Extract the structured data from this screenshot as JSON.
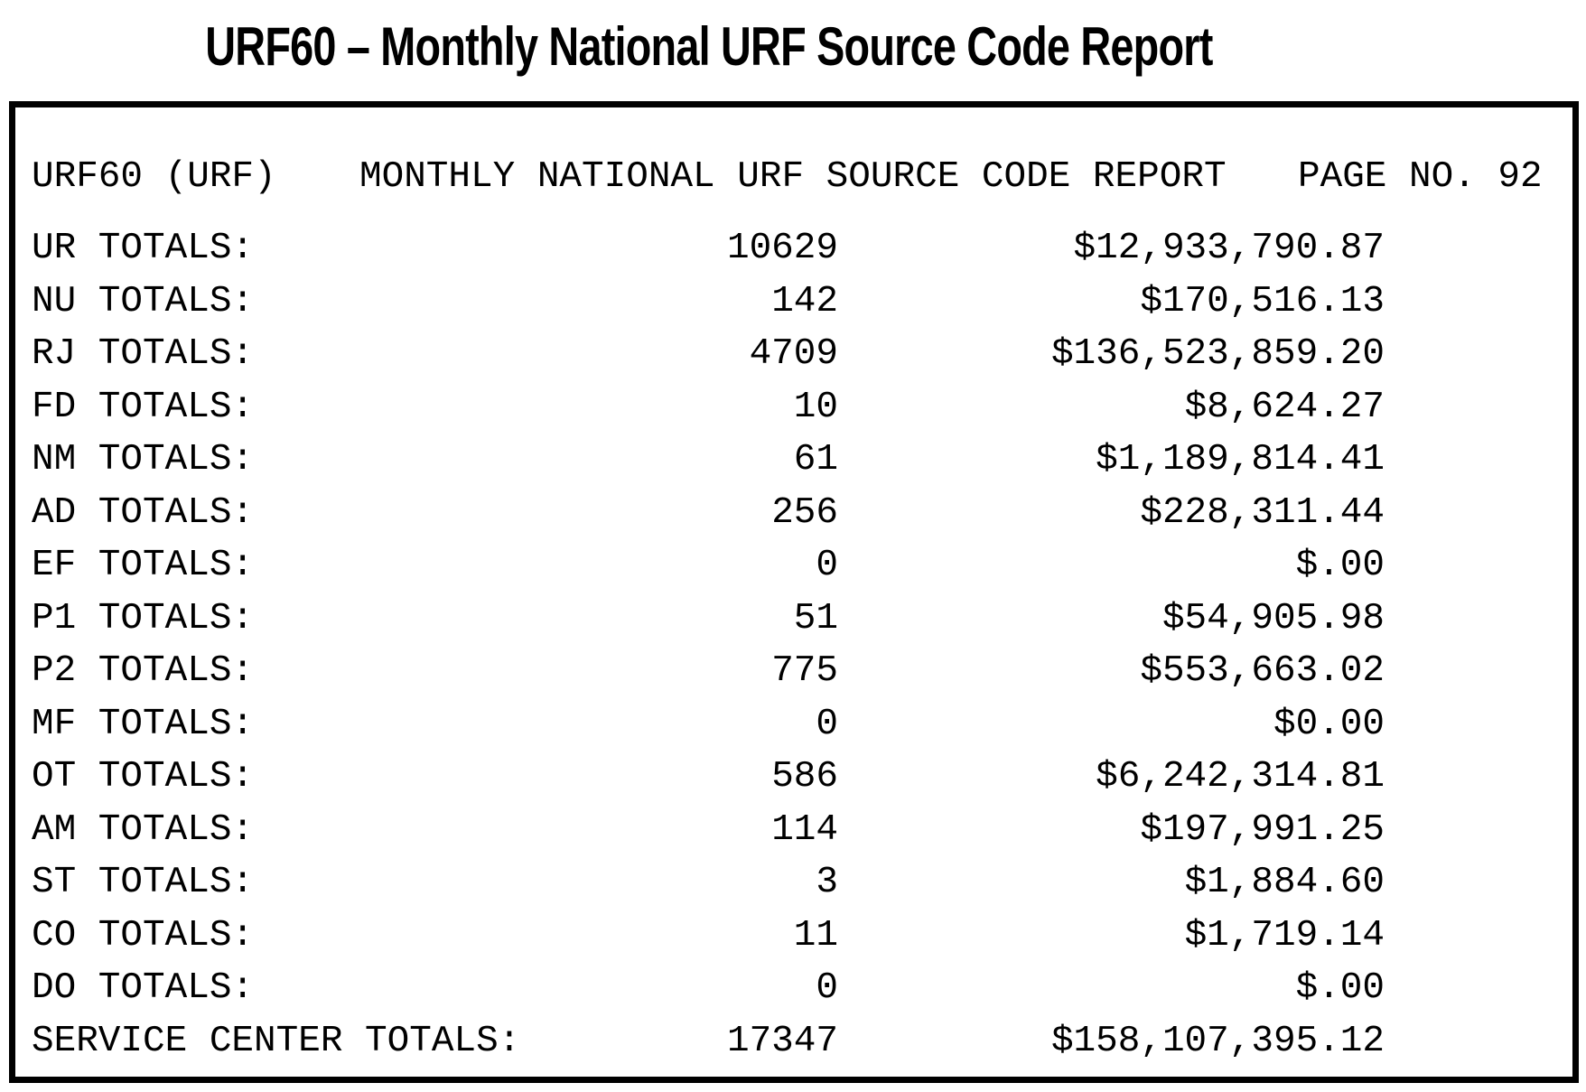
{
  "page_title": "URF60 – Monthly National URF Source Code Report",
  "report": {
    "id": "URF60 (URF)",
    "title": "MONTHLY NATIONAL URF SOURCE CODE REPORT",
    "page_label": "PAGE NO. 92",
    "rows": [
      {
        "label": "UR TOTALS:",
        "count": "10629",
        "amount": "$12,933,790.87"
      },
      {
        "label": "NU TOTALS:",
        "count": "142",
        "amount": "$170,516.13"
      },
      {
        "label": "RJ TOTALS:",
        "count": "4709",
        "amount": "$136,523,859.20"
      },
      {
        "label": "FD TOTALS:",
        "count": "10",
        "amount": "$8,624.27"
      },
      {
        "label": "NM TOTALS:",
        "count": "61",
        "amount": "$1,189,814.41"
      },
      {
        "label": "AD TOTALS:",
        "count": "256",
        "amount": "$228,311.44"
      },
      {
        "label": "EF TOTALS:",
        "count": "0",
        "amount": "$.00"
      },
      {
        "label": "P1 TOTALS:",
        "count": "51",
        "amount": "$54,905.98"
      },
      {
        "label": "P2 TOTALS:",
        "count": "775",
        "amount": "$553,663.02"
      },
      {
        "label": "MF TOTALS:",
        "count": "0",
        "amount": "$0.00"
      },
      {
        "label": "OT TOTALS:",
        "count": "586",
        "amount": "$6,242,314.81"
      },
      {
        "label": "AM TOTALS:",
        "count": "114",
        "amount": "$197,991.25"
      },
      {
        "label": "ST TOTALS:",
        "count": "3",
        "amount": "$1,884.60"
      },
      {
        "label": "CO TOTALS:",
        "count": "11",
        "amount": "$1,719.14"
      },
      {
        "label": "DO TOTALS:",
        "count": "0",
        "amount": "$.00"
      },
      {
        "label": "SERVICE CENTER TOTALS:",
        "count": "17347",
        "amount": "$158,107,395.12"
      }
    ]
  },
  "colors": {
    "text": "#000000",
    "background": "#ffffff",
    "border": "#000000"
  }
}
